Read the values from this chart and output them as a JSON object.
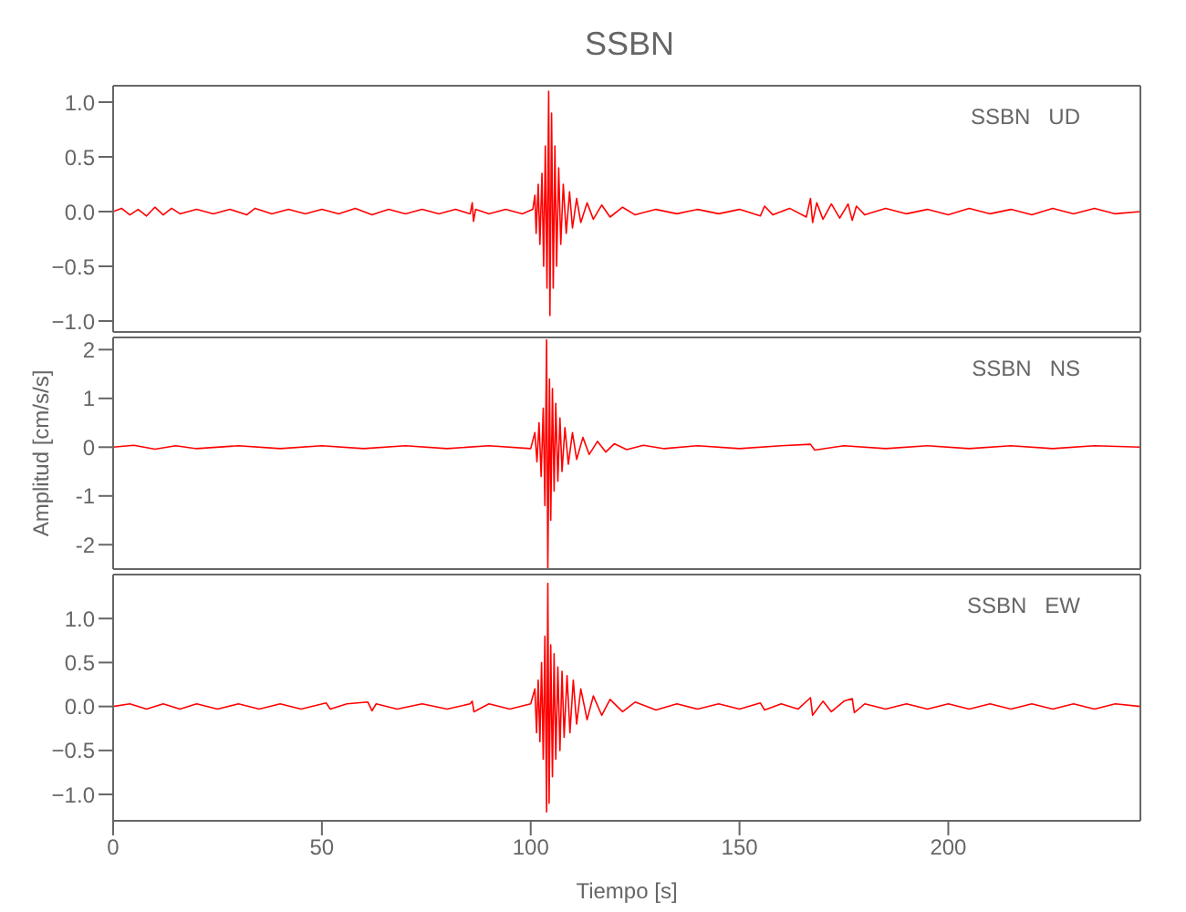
{
  "chart_data": [
    {
      "type": "line",
      "title": "SSBN",
      "annotations": [
        "SSBN   UD"
      ],
      "xlim": [
        0,
        246
      ],
      "xticks": [
        0,
        50,
        100,
        150,
        200
      ],
      "ylim": [
        -1.1,
        1.15
      ],
      "yticks": [
        {
          "value": -1,
          "label": "−1.0"
        },
        {
          "value": -0.5,
          "label": "−0.5"
        },
        {
          "value": 0,
          "label": "0.0"
        },
        {
          "value": 0.5,
          "label": "0.5"
        },
        {
          "value": 1,
          "label": "1.0"
        }
      ],
      "tick_labels": "y",
      "series": [
        {
          "color": "#ff0000",
          "x": [
            0,
            2,
            4,
            6,
            8,
            10,
            12,
            14,
            16,
            20,
            24,
            28,
            32,
            34,
            38,
            42,
            46,
            50,
            54,
            58,
            62,
            66,
            70,
            74,
            78,
            82,
            85.5,
            86,
            86.3,
            86.8,
            90,
            94,
            98,
            100.5,
            101,
            101.3,
            101.8,
            102.2,
            102.7,
            103.1,
            103.5,
            103.9,
            104.3,
            104.6,
            105,
            105.4,
            105.8,
            106.2,
            106.7,
            107.2,
            107.8,
            108.5,
            109.3,
            110,
            111,
            112,
            113.5,
            115,
            117,
            119,
            122,
            125,
            130,
            135,
            140,
            145,
            150,
            155,
            156,
            158,
            162,
            166,
            167,
            167.5,
            168.5,
            170,
            172,
            174,
            176,
            177,
            178,
            180,
            185,
            190,
            195,
            200,
            205,
            210,
            215,
            220,
            225,
            230,
            235,
            240,
            246
          ],
          "values": [
            0,
            0.03,
            -0.03,
            0.02,
            -0.04,
            0.04,
            -0.03,
            0.03,
            -0.02,
            0.02,
            -0.02,
            0.02,
            -0.03,
            0.03,
            -0.02,
            0.02,
            -0.02,
            0.02,
            -0.02,
            0.03,
            -0.03,
            0.02,
            -0.02,
            0.02,
            -0.02,
            0.02,
            -0.02,
            0.08,
            -0.09,
            0.02,
            -0.02,
            0.02,
            -0.02,
            0.02,
            0.15,
            -0.2,
            0.25,
            -0.3,
            0.35,
            -0.5,
            0.6,
            -0.7,
            1.1,
            -0.95,
            0.9,
            -0.7,
            0.6,
            -0.5,
            0.4,
            -0.3,
            0.25,
            -0.2,
            0.18,
            -0.15,
            0.12,
            -0.1,
            0.08,
            -0.07,
            0.06,
            -0.05,
            0.04,
            -0.03,
            0.02,
            -0.02,
            0.02,
            -0.02,
            0.02,
            -0.04,
            0.05,
            -0.03,
            0.03,
            -0.05,
            0.12,
            -0.1,
            0.08,
            -0.07,
            0.07,
            -0.06,
            0.07,
            -0.08,
            0.05,
            -0.03,
            0.03,
            -0.02,
            0.02,
            -0.03,
            0.03,
            -0.02,
            0.02,
            -0.03,
            0.03,
            -0.02,
            0.03,
            -0.02,
            0
          ]
        }
      ]
    },
    {
      "type": "line",
      "ylabel": "Amplitud  [cm/s/s]",
      "annotations": [
        "SSBN   NS"
      ],
      "xlim": [
        0,
        246
      ],
      "xticks": [
        0,
        50,
        100,
        150,
        200
      ],
      "ylim": [
        -2.5,
        2.25
      ],
      "yticks": [
        -2,
        -1,
        0,
        1,
        2
      ],
      "tick_labels": "y",
      "series": [
        {
          "color": "#ff0000",
          "x": [
            0,
            5,
            10,
            15,
            20,
            30,
            40,
            50,
            60,
            70,
            80,
            90,
            100,
            101,
            101.5,
            102,
            102.5,
            103,
            103.4,
            103.8,
            104.1,
            104.5,
            104.8,
            105.2,
            105.6,
            106,
            106.5,
            107,
            107.5,
            108.2,
            109,
            110,
            111,
            112.5,
            114,
            116,
            118,
            120,
            123,
            127,
            132,
            140,
            150,
            160,
            167,
            168,
            175,
            185,
            195,
            205,
            215,
            225,
            235,
            246
          ],
          "values": [
            0,
            0.04,
            -0.04,
            0.03,
            -0.03,
            0.03,
            -0.03,
            0.03,
            -0.03,
            0.03,
            -0.03,
            0.03,
            -0.03,
            0.3,
            -0.3,
            0.5,
            -0.6,
            0.8,
            -1.2,
            2.2,
            -2.5,
            1.4,
            -1.5,
            1.2,
            -0.9,
            0.9,
            -0.7,
            0.6,
            -0.5,
            0.4,
            -0.35,
            0.3,
            -0.25,
            0.2,
            -0.15,
            0.12,
            -0.1,
            0.07,
            -0.05,
            0.04,
            -0.03,
            0.03,
            -0.03,
            0.03,
            0.06,
            -0.06,
            0.03,
            -0.03,
            0.03,
            -0.03,
            0.03,
            -0.03,
            0.03,
            0
          ]
        }
      ]
    },
    {
      "type": "line",
      "xlabel": "Tiempo  [s]",
      "annotations": [
        "SSBN   EW"
      ],
      "xlim": [
        0,
        246
      ],
      "xticks": [
        0,
        50,
        100,
        150,
        200
      ],
      "ylim": [
        -1.3,
        1.5
      ],
      "yticks": [
        {
          "value": -1,
          "label": "−1.0"
        },
        {
          "value": -0.5,
          "label": "−0.5"
        },
        {
          "value": 0,
          "label": "0.0"
        },
        {
          "value": 0.5,
          "label": "0.5"
        },
        {
          "value": 1,
          "label": "1.0"
        }
      ],
      "series": [
        {
          "color": "#ff0000",
          "x": [
            0,
            4,
            8,
            12,
            16,
            20,
            25,
            30,
            35,
            40,
            45,
            51,
            52,
            56,
            61,
            62,
            63,
            68,
            74,
            80,
            85.5,
            86,
            86.4,
            90,
            95,
            100,
            101,
            101.4,
            101.8,
            102.2,
            102.6,
            103,
            103.4,
            103.8,
            104.1,
            104.4,
            104.8,
            105.2,
            105.6,
            106,
            106.5,
            107,
            107.5,
            108,
            108.7,
            109.4,
            110.2,
            111,
            112,
            113.5,
            115,
            117,
            119,
            122,
            125,
            130,
            135,
            140,
            145,
            150,
            155,
            156,
            160,
            164,
            167,
            167.5,
            170,
            172,
            175,
            177,
            177.5,
            180,
            185,
            190,
            195,
            200,
            205,
            210,
            215,
            220,
            225,
            230,
            235,
            240,
            246
          ],
          "values": [
            0,
            0.03,
            -0.03,
            0.03,
            -0.03,
            0.03,
            -0.03,
            0.03,
            -0.03,
            0.03,
            -0.03,
            0.04,
            -0.03,
            0.03,
            0.05,
            -0.05,
            0.03,
            -0.03,
            0.03,
            -0.03,
            0.03,
            0.06,
            -0.06,
            0.03,
            -0.03,
            0.03,
            0.2,
            -0.3,
            0.3,
            -0.4,
            0.5,
            -0.6,
            0.8,
            -1.2,
            1.4,
            -1.1,
            0.7,
            -0.8,
            0.6,
            -0.6,
            0.45,
            -0.5,
            0.4,
            -0.35,
            0.35,
            -0.3,
            0.3,
            -0.2,
            0.2,
            -0.15,
            0.12,
            -0.1,
            0.08,
            -0.06,
            0.05,
            -0.04,
            0.03,
            -0.03,
            0.03,
            -0.03,
            0.04,
            -0.04,
            0.03,
            -0.03,
            0.1,
            -0.1,
            0.06,
            -0.06,
            0.06,
            0.09,
            -0.07,
            0.03,
            -0.03,
            0.03,
            -0.03,
            0.03,
            -0.03,
            0.03,
            -0.03,
            0.03,
            -0.03,
            0.03,
            -0.03,
            0.03,
            0
          ]
        }
      ]
    }
  ]
}
